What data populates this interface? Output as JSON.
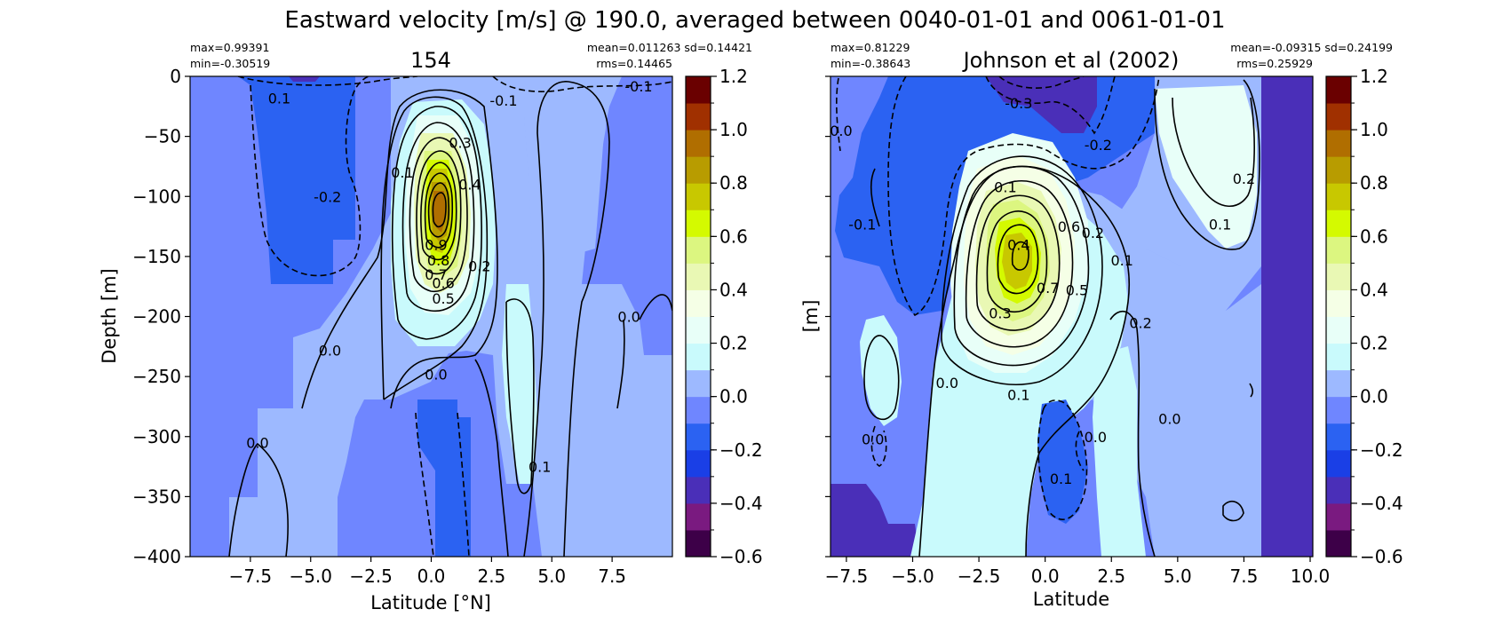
{
  "figure": {
    "title": "Eastward velocity [m/s] @ 190.0, averaged between 0040-01-01 and 0061-01-01"
  },
  "chart_data": [
    {
      "type": "contourf",
      "title": "154",
      "xlabel": "Latitude [°N]",
      "ylabel": "Depth [m]",
      "xlim": [
        -10,
        10
      ],
      "ylim": [
        -400,
        0
      ],
      "xticks": [
        -7.5,
        -5.0,
        -2.5,
        0.0,
        2.5,
        5.0,
        7.5
      ],
      "xtick_labels": [
        "−7.5",
        "−5.0",
        "−2.5",
        "0.0",
        "2.5",
        "5.0",
        "7.5"
      ],
      "yticks": [
        0,
        -50,
        -100,
        -150,
        -200,
        -250,
        -300,
        -350,
        -400
      ],
      "ytick_labels": [
        "0",
        "−50",
        "−100",
        "−150",
        "−200",
        "−250",
        "−300",
        "−350",
        "−400"
      ],
      "stats_left": [
        "max=0.99391",
        "min=-0.30519"
      ],
      "stats_right": [
        "mean=0.011263 sd=0.14421",
        "rms=0.14465"
      ],
      "contour_labels": [
        {
          "text": "0.1",
          "x": -6.3,
          "y": -18
        },
        {
          "text": "-0.1",
          "x": 3.0,
          "y": -20
        },
        {
          "text": "-0.1",
          "x": 8.6,
          "y": -8
        },
        {
          "text": "0.3",
          "x": 1.2,
          "y": -55
        },
        {
          "text": "0.4",
          "x": 1.6,
          "y": -90
        },
        {
          "text": "0.1",
          "x": -1.2,
          "y": -80
        },
        {
          "text": "-0.2",
          "x": -4.3,
          "y": -100
        },
        {
          "text": "0.9",
          "x": 0.2,
          "y": -140
        },
        {
          "text": "0.8",
          "x": 0.3,
          "y": -153
        },
        {
          "text": "0.7",
          "x": 0.2,
          "y": -165
        },
        {
          "text": "0.6",
          "x": 0.5,
          "y": -172
        },
        {
          "text": "0.5",
          "x": 0.5,
          "y": -185
        },
        {
          "text": "0.2",
          "x": 2.0,
          "y": -158
        },
        {
          "text": "0.0",
          "x": 8.2,
          "y": -200
        },
        {
          "text": "0.0",
          "x": -4.2,
          "y": -228
        },
        {
          "text": "0.0",
          "x": 0.2,
          "y": -248
        },
        {
          "text": "0.0",
          "x": -7.2,
          "y": -305
        },
        {
          "text": "0.1",
          "x": 4.5,
          "y": -325
        }
      ]
    },
    {
      "type": "contourf",
      "title": "Johnson et al (2002)",
      "xlabel": "Latitude",
      "ylabel": "[m]",
      "xlim": [
        -8.1,
        10.1
      ],
      "ylim": [
        -400,
        0
      ],
      "xticks": [
        -7.5,
        -5.0,
        -2.5,
        0.0,
        2.5,
        5.0,
        7.5,
        10.0
      ],
      "xtick_labels": [
        "−7.5",
        "−5.0",
        "−2.5",
        "0.0",
        "2.5",
        "5.0",
        "7.5",
        "10.0"
      ],
      "yticks": [
        0,
        -50,
        -100,
        -150,
        -200,
        -250,
        -300,
        -350,
        -400
      ],
      "stats_left": [
        "max=0.81229",
        "min=-0.38643"
      ],
      "stats_right": [
        "mean=-0.09315 sd=0.24199",
        "rms=0.25929"
      ],
      "contour_labels": [
        {
          "text": "0.0",
          "x": -7.7,
          "y": -45
        },
        {
          "text": "-0.1",
          "x": -6.9,
          "y": -123
        },
        {
          "text": "-0.3",
          "x": -1.0,
          "y": -22
        },
        {
          "text": "-0.2",
          "x": 2.0,
          "y": -57
        },
        {
          "text": "0.1",
          "x": -1.5,
          "y": -92
        },
        {
          "text": "0.2",
          "x": 7.5,
          "y": -85
        },
        {
          "text": "0.1",
          "x": 6.6,
          "y": -123
        },
        {
          "text": "0.4",
          "x": -1.0,
          "y": -140
        },
        {
          "text": "0.6",
          "x": 0.9,
          "y": -125
        },
        {
          "text": "0.2",
          "x": 1.8,
          "y": -130
        },
        {
          "text": "0.1",
          "x": 2.9,
          "y": -153
        },
        {
          "text": "0.7",
          "x": 0.1,
          "y": -176
        },
        {
          "text": "0.5",
          "x": 1.2,
          "y": -178
        },
        {
          "text": "0.3",
          "x": -1.7,
          "y": -197
        },
        {
          "text": "0.2",
          "x": 3.6,
          "y": -205
        },
        {
          "text": "0.0",
          "x": -3.7,
          "y": -255
        },
        {
          "text": "0.1",
          "x": -1.0,
          "y": -265
        },
        {
          "text": "0.0",
          "x": 1.9,
          "y": -300
        },
        {
          "text": "0.0",
          "x": 4.7,
          "y": -285
        },
        {
          "text": "0.0",
          "x": -6.5,
          "y": -302
        },
        {
          "text": "0.1",
          "x": 0.6,
          "y": -335
        }
      ]
    }
  ],
  "colorbar": {
    "min": -0.6,
    "max": 1.2,
    "levels": [
      -0.6,
      -0.5,
      -0.4,
      -0.3,
      -0.2,
      -0.1,
      0.0,
      0.1,
      0.2,
      0.3,
      0.4,
      0.5,
      0.6,
      0.7,
      0.8,
      0.9,
      1.0,
      1.1,
      1.2
    ],
    "colors": [
      "#3d0048",
      "#7a1a80",
      "#4a2fb8",
      "#1a3fe6",
      "#2b62f2",
      "#6f86ff",
      "#9db9ff",
      "#c9fafc",
      "#e8fff8",
      "#f5ffe6",
      "#e9f8b4",
      "#dcf680",
      "#d4fa00",
      "#c8c800",
      "#b89c00",
      "#b06e00",
      "#a03000",
      "#6a0000"
    ],
    "tick_labels": [
      "1.2",
      "1.0",
      "0.8",
      "0.6",
      "0.4",
      "0.2",
      "0.0",
      "−0.2",
      "−0.4",
      "−0.6"
    ],
    "tick_values": [
      1.2,
      1.0,
      0.8,
      0.6,
      0.4,
      0.2,
      0.0,
      -0.2,
      -0.4,
      -0.6
    ]
  }
}
